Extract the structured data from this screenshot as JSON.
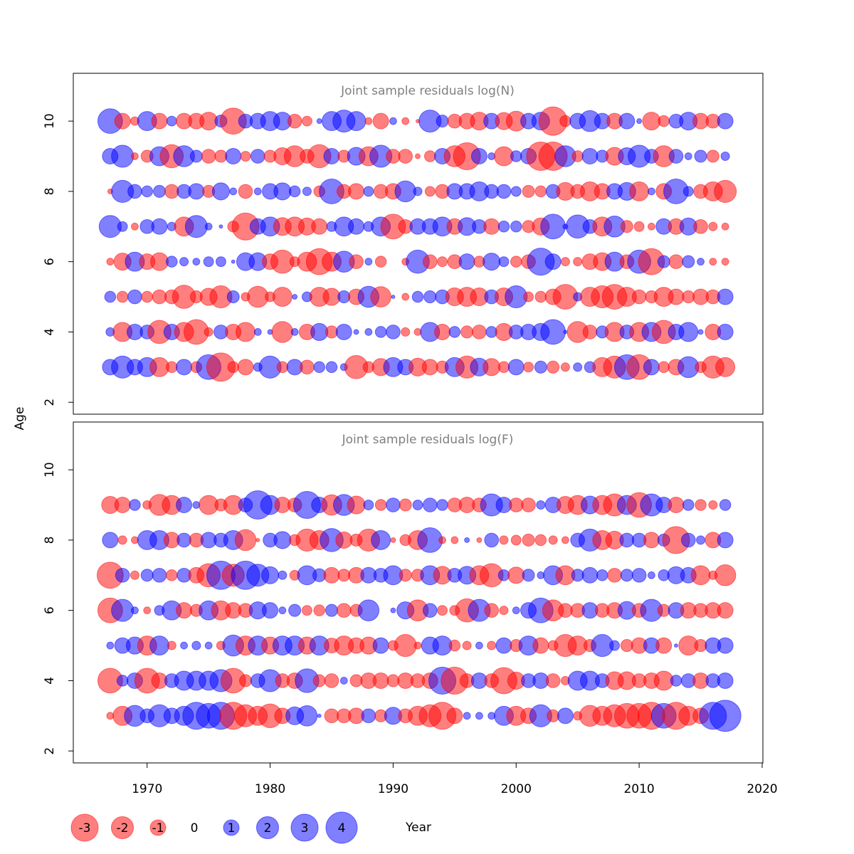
{
  "chart_data": [
    {
      "type": "bubble",
      "title": "Joint sample residuals log(N)",
      "ylabel": "Age",
      "xlim": [
        1964,
        2020.06
      ],
      "ylim": [
        1.66,
        11.36
      ],
      "yticks": [
        2,
        4,
        6,
        8,
        10
      ],
      "positive_color": "#0000ff",
      "negative_color": "#ff0000",
      "x": [
        1967,
        1968,
        1969,
        1970,
        1971,
        1972,
        1973,
        1974,
        1975,
        1976,
        1977,
        1978,
        1979,
        1980,
        1981,
        1982,
        1983,
        1984,
        1985,
        1986,
        1987,
        1988,
        1989,
        1990,
        1991,
        1992,
        1993,
        1994,
        1995,
        1996,
        1997,
        1998,
        1999,
        2000,
        2001,
        2002,
        2003,
        2004,
        2005,
        2006,
        2007,
        2008,
        2009,
        2010,
        2011,
        2012,
        2013,
        2014,
        2015,
        2016,
        2017
      ],
      "ages": [
        3,
        4,
        5,
        6,
        7,
        8,
        9,
        10
      ],
      "values": [
        [
          1,
          2,
          1,
          1.5,
          -1.5,
          -0.5,
          1,
          -0.5,
          2.5,
          -3.3,
          -0.5,
          -1,
          0.3,
          2,
          -0.5,
          1,
          -0.8,
          0.5,
          0.5,
          0.2,
          -2.2,
          -0.5,
          -1.2,
          1.5,
          1,
          -1.3,
          -1,
          -0.6,
          1.5,
          -2,
          1.3,
          -1.2,
          -0.5,
          1,
          -0.4,
          0.6,
          -0.6,
          -0.3,
          0.3,
          0.5,
          -1.5,
          -2,
          2.5,
          -2.5,
          1,
          -0.5,
          -1,
          1.8,
          -0.5,
          -2,
          -1.5
        ],
        [
          0.3,
          -1.5,
          1,
          0.8,
          -2.2,
          1,
          -1.5,
          -2.5,
          -0.3,
          0.8,
          -1,
          -1.5,
          0.2,
          0.1,
          -1.8,
          0.2,
          -1,
          1.2,
          -0.6,
          1,
          0.1,
          0.2,
          0.5,
          0.8,
          -0.3,
          -0.2,
          1.5,
          -1,
          0.5,
          -0.6,
          -0.8,
          0.5,
          -1.2,
          0.8,
          1,
          1.2,
          2.5,
          0.05,
          -1.8,
          -0.8,
          0.6,
          -1.5,
          0.8,
          -1.5,
          1.5,
          -2.2,
          1,
          1.5,
          0.1,
          -1,
          1
        ],
        [
          0.5,
          -0.5,
          0.8,
          -0.5,
          -0.8,
          -0.8,
          -2.2,
          -0.6,
          -1.2,
          -2,
          0.6,
          -0.3,
          -1.8,
          -0.4,
          -1.5,
          0.1,
          0.4,
          -1.5,
          -1.2,
          0.6,
          -1,
          1.8,
          -1.7,
          0.05,
          -0.2,
          0.5,
          0.6,
          0.8,
          -1.3,
          -1.5,
          -1.3,
          0.8,
          -1.3,
          2,
          -0.4,
          -0.5,
          -1,
          -2.5,
          0.3,
          -1.5,
          -2,
          -2.5,
          -1.5,
          -0.8,
          -0.6,
          -1.5,
          -1,
          -0.6,
          -1,
          -0.8,
          1
        ],
        [
          -0.2,
          -1.2,
          1.5,
          -1,
          -1.3,
          0.5,
          0.3,
          0.2,
          0.4,
          0.4,
          0.05,
          1.3,
          1.3,
          -1,
          -2.2,
          -0.4,
          -1.5,
          -2.8,
          -1.5,
          1.8,
          -0.8,
          0.2,
          -0.5,
          0,
          -0.2,
          2.2,
          -0.8,
          -0.4,
          -0.8,
          1,
          -0.5,
          1.2,
          0.4,
          -0.5,
          -0.8,
          3,
          1,
          -0.3,
          -0.3,
          -1,
          -1.3,
          1.5,
          -0.8,
          2.2,
          -2.8,
          0.6,
          -0.8,
          0.6,
          0.2,
          -0.2,
          -0.2
        ],
        [
          2,
          0.4,
          -0.2,
          0.8,
          1,
          0.3,
          -1.5,
          2,
          0.2,
          0.05,
          -0.5,
          -3,
          1,
          1.5,
          -1.3,
          -1.5,
          -1.2,
          -1,
          0.4,
          1.5,
          1,
          0.4,
          1.5,
          -2.5,
          -0.8,
          1,
          1,
          1.5,
          -1,
          1.3,
          0.8,
          -1,
          0.5,
          0.5,
          -0.6,
          -1.2,
          2.5,
          0.1,
          2.2,
          0.8,
          -1.5,
          1.8,
          -0.6,
          -0.4,
          -0.2,
          1,
          -1,
          1.2,
          -0.8,
          -0.3,
          -0.2
        ],
        [
          -0.1,
          2,
          0.8,
          0.5,
          0.6,
          -0.8,
          0.8,
          1,
          -0.6,
          1.2,
          0.2,
          -0.8,
          0.2,
          1,
          1.2,
          0.5,
          0.3,
          -0.5,
          2.5,
          -0.8,
          -1,
          0.4,
          -0.8,
          -1,
          1.8,
          0.3,
          -0.4,
          -0.8,
          1,
          1,
          1.5,
          0.8,
          0.8,
          0.4,
          -0.6,
          -0.5,
          0.8,
          -1.3,
          -0.8,
          -1.5,
          -1,
          1,
          1.3,
          -1.5,
          0.2,
          -1,
          2.5,
          0.4,
          -0.8,
          -1.5,
          -2
        ],
        [
          1,
          2,
          -0.2,
          -0.6,
          1.5,
          -2.2,
          1.8,
          0.6,
          -0.8,
          -0.6,
          1,
          -0.4,
          0.8,
          -0.6,
          -1.2,
          -1.8,
          -0.8,
          -2.2,
          1,
          -0.6,
          1.3,
          -1.5,
          2,
          -0.8,
          -0.8,
          -0.1,
          -0.5,
          1,
          -1.8,
          -3,
          1,
          0.2,
          -1.5,
          0.5,
          1,
          -3.3,
          -3.3,
          1.8,
          -0.5,
          1,
          0.6,
          -1.3,
          1.2,
          2,
          0.8,
          -1.8,
          0.8,
          0.2,
          0.6,
          -0.6,
          0.3
        ],
        [
          2.5,
          -1,
          -0.3,
          1.5,
          -1,
          0.4,
          -1,
          -1,
          -1.3,
          0.6,
          -2.8,
          0.8,
          1,
          1.5,
          1.3,
          -0.8,
          -0.4,
          0.1,
          1.5,
          2,
          1.5,
          -0.2,
          -1,
          0.2,
          -0.2,
          -0.05,
          2,
          0.6,
          -0.8,
          -1,
          -1.3,
          1,
          -1.2,
          -1.6,
          1,
          1.3,
          -3.3,
          -0.5,
          1,
          1.8,
          1,
          -1,
          1,
          0.1,
          -1.3,
          -0.5,
          0.8,
          1.3,
          -1,
          -0.8,
          1
        ]
      ]
    },
    {
      "type": "bubble",
      "title": "Joint sample residuals log(F)",
      "xlabel": "Year",
      "xlim": [
        1964,
        2020.06
      ],
      "ylim": [
        1.66,
        11.36
      ],
      "xticks": [
        1970,
        1980,
        1990,
        2000,
        2010,
        2020
      ],
      "yticks": [
        2,
        4,
        6,
        8,
        10
      ],
      "positive_color": "#0000ff",
      "negative_color": "#ff0000",
      "legend_values": [
        -3,
        -2,
        -1,
        0,
        1,
        2,
        3,
        4
      ],
      "x": [
        1967,
        1968,
        1969,
        1970,
        1971,
        1972,
        1973,
        1974,
        1975,
        1976,
        1977,
        1978,
        1979,
        1980,
        1981,
        1982,
        1983,
        1984,
        1985,
        1986,
        1987,
        1988,
        1989,
        1990,
        1991,
        1992,
        1993,
        1994,
        1995,
        1996,
        1997,
        1998,
        1999,
        2000,
        2001,
        2002,
        2003,
        2004,
        2005,
        2006,
        2007,
        2008,
        2009,
        2010,
        2011,
        2012,
        2013,
        2014,
        2015,
        2016,
        2017
      ],
      "ages": [
        3,
        4,
        5,
        6,
        7,
        8,
        9
      ],
      "values": [
        [
          -0.2,
          -1.5,
          1.8,
          0.8,
          2,
          1,
          1.5,
          3,
          2.5,
          3,
          -3,
          -2,
          -1.5,
          -2.3,
          -1,
          1.3,
          1.7,
          0.05,
          -0.8,
          -0.8,
          -1,
          0.8,
          -0.6,
          1.2,
          -0.8,
          -1.5,
          -2,
          -3,
          -1,
          0.2,
          0.2,
          0.2,
          1.5,
          -1.5,
          -1,
          2,
          -0.6,
          1,
          -0.3,
          -1.8,
          -1.5,
          -2,
          -2.5,
          -2.5,
          -3,
          2.5,
          -3,
          -1.5,
          -1,
          3,
          4
        ],
        [
          -2.5,
          0.5,
          1,
          -2.5,
          -1,
          0.8,
          1.5,
          1.5,
          1.5,
          2,
          -2.5,
          -0.6,
          0.8,
          2,
          -0.8,
          -1,
          2.3,
          -0.6,
          -0.8,
          0.2,
          -0.6,
          -1,
          -1,
          -0.6,
          -1,
          -0.8,
          -1,
          3,
          -3,
          -0.8,
          1,
          -0.8,
          -2.8,
          -1.2,
          0.8,
          1,
          -0.8,
          -0.3,
          1.5,
          1.5,
          0.8,
          -1.3,
          -1.3,
          -0.8,
          -1,
          -1.5,
          0.5,
          0.8,
          -1,
          0.8,
          1
        ],
        [
          0.2,
          1,
          1.2,
          -1.5,
          1.5,
          -0.3,
          0.2,
          0.3,
          0.2,
          -0.3,
          1.8,
          -1.5,
          1.5,
          -1.2,
          1.5,
          1.5,
          -1.2,
          1.5,
          -0.9,
          -1.5,
          -1,
          -1.2,
          1,
          -0.4,
          -2,
          -0.2,
          1.2,
          1.5,
          -0.5,
          -0.3,
          0.2,
          -0.3,
          1,
          -0.6,
          1.5,
          -1,
          -0.4,
          -2,
          -1.5,
          -0.6,
          2,
          0.4,
          -0.6,
          -1,
          1,
          -1,
          0.05,
          -1.5,
          -0.6,
          1,
          1
        ],
        [
          -2.5,
          2,
          0.2,
          -0.2,
          0.4,
          1.5,
          -1,
          -0.6,
          1.5,
          -1.5,
          -1,
          -0.8,
          1.2,
          1,
          0.2,
          0.6,
          -0.4,
          -0.5,
          0.6,
          -0.8,
          -0.6,
          1.8,
          0,
          0.1,
          1.2,
          -1.8,
          0.8,
          -0.4,
          -0.4,
          -2.2,
          2,
          -0.8,
          -0.3,
          0.2,
          1,
          2.5,
          -1.8,
          -0.8,
          -0.8,
          1,
          -0.8,
          -1,
          1.3,
          -0.8,
          2,
          -0.6,
          1,
          -1,
          -0.8,
          -1,
          -1
        ],
        [
          -2.8,
          0.8,
          -0.3,
          0.6,
          0.8,
          -0.5,
          0.8,
          -1,
          -2.2,
          3.3,
          -2,
          3.3,
          2,
          1.2,
          0.3,
          -0.4,
          1.5,
          0.7,
          -1,
          -0.6,
          -1,
          1,
          0.8,
          1.5,
          -0.6,
          -0.6,
          1.5,
          -1.3,
          0.8,
          1.3,
          -1.5,
          -2.2,
          0.5,
          -1.1,
          0.6,
          0.2,
          1.5,
          -1.5,
          0.6,
          1,
          0.5,
          -0.8,
          0.6,
          0.8,
          0.2,
          0.5,
          1.2,
          1,
          -1.5,
          -0.3,
          -1.8
        ],
        [
          1,
          -0.3,
          -0.2,
          1.5,
          1.5,
          -1,
          0.8,
          -0.8,
          1,
          0.8,
          1.5,
          -1.8,
          -0.05,
          0.8,
          1.2,
          -0.5,
          -2,
          -1.5,
          2.2,
          -1.1,
          -0.6,
          -2,
          1.5,
          -0.1,
          -0.5,
          -1.5,
          2.5,
          -0.2,
          -0.2,
          0.1,
          -0.1,
          0.8,
          -0.3,
          -0.4,
          -0.6,
          -0.5,
          -0.3,
          -0.2,
          0.8,
          2,
          -1.5,
          -1.3,
          0.8,
          0.8,
          -1,
          0.6,
          -3,
          0.8,
          0.3,
          -1,
          1
        ],
        [
          -1.2,
          -1,
          0.5,
          -0.3,
          -1.8,
          -1.5,
          1,
          0.2,
          -1.5,
          -0.6,
          -1.5,
          0.8,
          3.3,
          1.5,
          -1,
          -0.8,
          3,
          1,
          -1.7,
          1.8,
          -1.3,
          0.4,
          -0.5,
          0.8,
          -0.6,
          0.4,
          0.8,
          0.5,
          -0.8,
          -1,
          -0.8,
          2,
          1,
          -0.8,
          -0.8,
          0.3,
          1,
          -1.2,
          -1.5,
          1.3,
          -1.5,
          -2,
          1.5,
          -2.5,
          2,
          1,
          -1,
          0.5,
          -0.5,
          -0.3,
          0.5
        ]
      ]
    }
  ]
}
